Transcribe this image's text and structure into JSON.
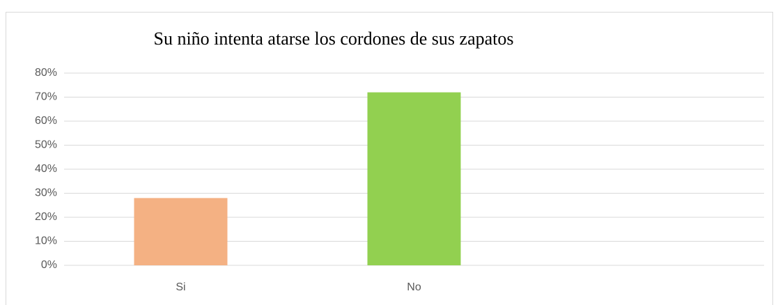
{
  "chart_data": {
    "type": "bar",
    "title": "Su niño intenta atarse los cordones de sus zapatos",
    "categories": [
      "Si",
      "No",
      null
    ],
    "values": [
      28,
      72,
      null
    ],
    "colors": [
      "#f4b183",
      "#92d050",
      null
    ],
    "ylim": [
      0,
      80
    ],
    "yticks": [
      {
        "value": 0,
        "label": "0%"
      },
      {
        "value": 10,
        "label": "10%"
      },
      {
        "value": 20,
        "label": "20%"
      },
      {
        "value": 30,
        "label": "30%"
      },
      {
        "value": 40,
        "label": "40%"
      },
      {
        "value": 50,
        "label": "50%"
      },
      {
        "value": 60,
        "label": "60%"
      },
      {
        "value": 70,
        "label": "70%"
      },
      {
        "value": 80,
        "label": "80%"
      }
    ],
    "grid": true
  }
}
